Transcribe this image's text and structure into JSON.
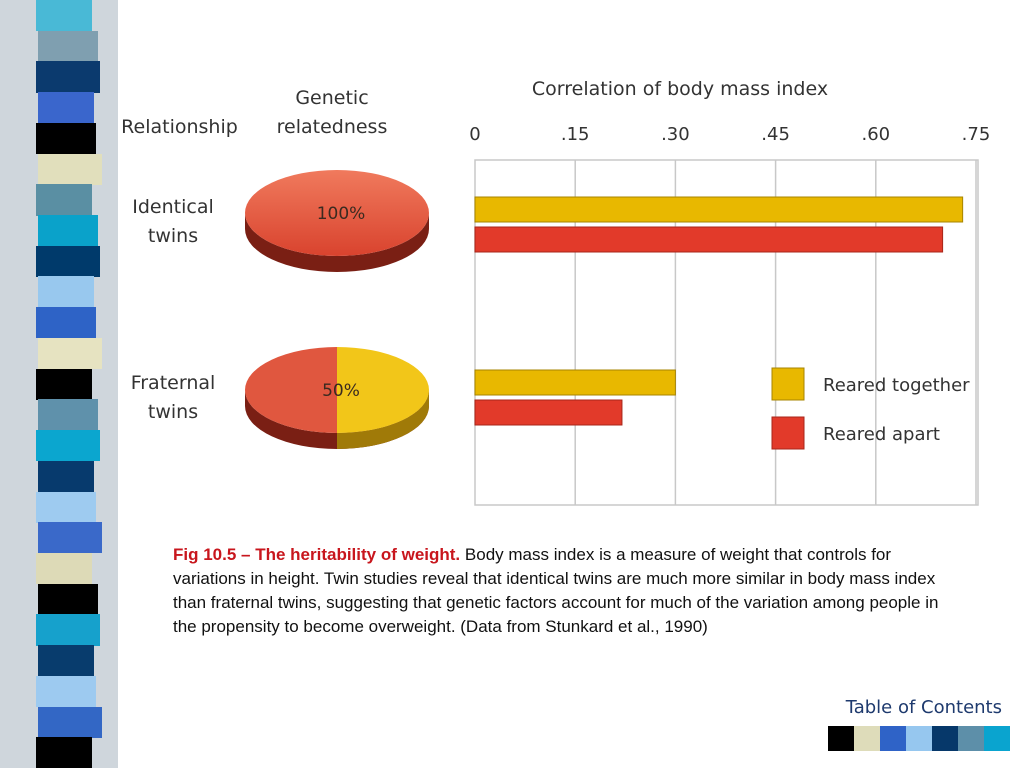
{
  "colors": {
    "reared_together": "#e8b800",
    "reared_apart": "#e23a2a",
    "pie_red": "#e0573f",
    "pie_yellow": "#f2c619",
    "caption_accent": "#c8161d"
  },
  "stripe": {
    "colors": [
      "#49b9d6",
      "#7f9fb0",
      "#0b3a6e",
      "#3a66cc",
      "#000000",
      "#e1dfbc",
      "#5a8fa3",
      "#0aa2ca",
      "#003a6b",
      "#98c8ee",
      "#2e63c6",
      "#e6e3c1",
      "#000000",
      "#5f91ab",
      "#0ba6cf",
      "#073a6d",
      "#9ecbf0",
      "#3a69c9",
      "#dddab7",
      "#000000",
      "#16a1cc",
      "#083c6d",
      "#9dcaf0",
      "#3367c5",
      "#000000"
    ]
  },
  "headers": {
    "relationship": "Relationship",
    "genetic": "Genetic\nrelatedness",
    "axis_title": "Correlation of body mass index"
  },
  "rows": [
    {
      "label": "Identical\ntwins",
      "pie_label": "100%"
    },
    {
      "label": "Fraternal\ntwins",
      "pie_label": "50%"
    }
  ],
  "chart_data": {
    "type": "bar",
    "orientation": "horizontal",
    "title": "Correlation of body mass index",
    "categories": [
      "Identical twins",
      "Fraternal twins"
    ],
    "series": [
      {
        "name": "Reared together",
        "values": [
          0.73,
          0.3
        ]
      },
      {
        "name": "Reared apart",
        "values": [
          0.7,
          0.22
        ]
      }
    ],
    "xticks": [
      "0",
      ".15",
      ".30",
      ".45",
      ".60",
      ".75"
    ],
    "xlim": [
      0,
      0.75
    ],
    "grid": true,
    "legend_position": "bottom-right"
  },
  "caption": {
    "fig_label": "Fig 10.5 – The heritability of weight.",
    "text": " Body mass index is a measure of weight that controls for variations in height. Twin studies reveal that identical twins are much more similar in body mass index than fraternal twins, suggesting that genetic factors account for much of the variation among people in the propensity to become overweight. (Data from Stunkard et al., 1990)"
  },
  "footer": {
    "toc_label": "Table of Contents",
    "swatches": [
      "#000000",
      "#dedcba",
      "#2f63c7",
      "#96c7ef",
      "#06386a",
      "#5d8fa9",
      "#0aa4cf"
    ]
  }
}
